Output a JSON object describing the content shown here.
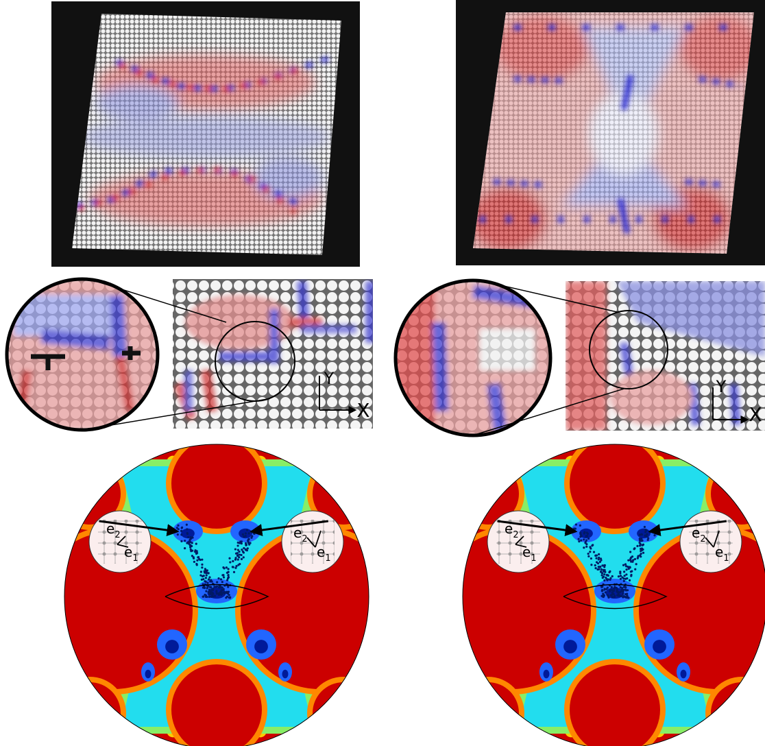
{
  "crystal_panels": [
    {
      "axis_x": "X",
      "axis_y": "Y"
    },
    {
      "axis_x": "X",
      "axis_y": "Y"
    }
  ],
  "disk_plots": [
    {
      "insets": [
        {
          "labels": [
            {
              "base": "e",
              "sub": "2"
            },
            {
              "base": "e",
              "sub": "1"
            }
          ]
        },
        {
          "labels": [
            {
              "base": "e",
              "sub": "2"
            },
            {
              "base": "e",
              "sub": "1"
            }
          ]
        }
      ]
    },
    {
      "insets": [
        {
          "labels": [
            {
              "base": "e",
              "sub": "2"
            },
            {
              "base": "e",
              "sub": "1"
            }
          ]
        },
        {
          "labels": [
            {
              "base": "e",
              "sub": "2"
            },
            {
              "base": "e",
              "sub": "1"
            }
          ]
        }
      ]
    }
  ]
}
